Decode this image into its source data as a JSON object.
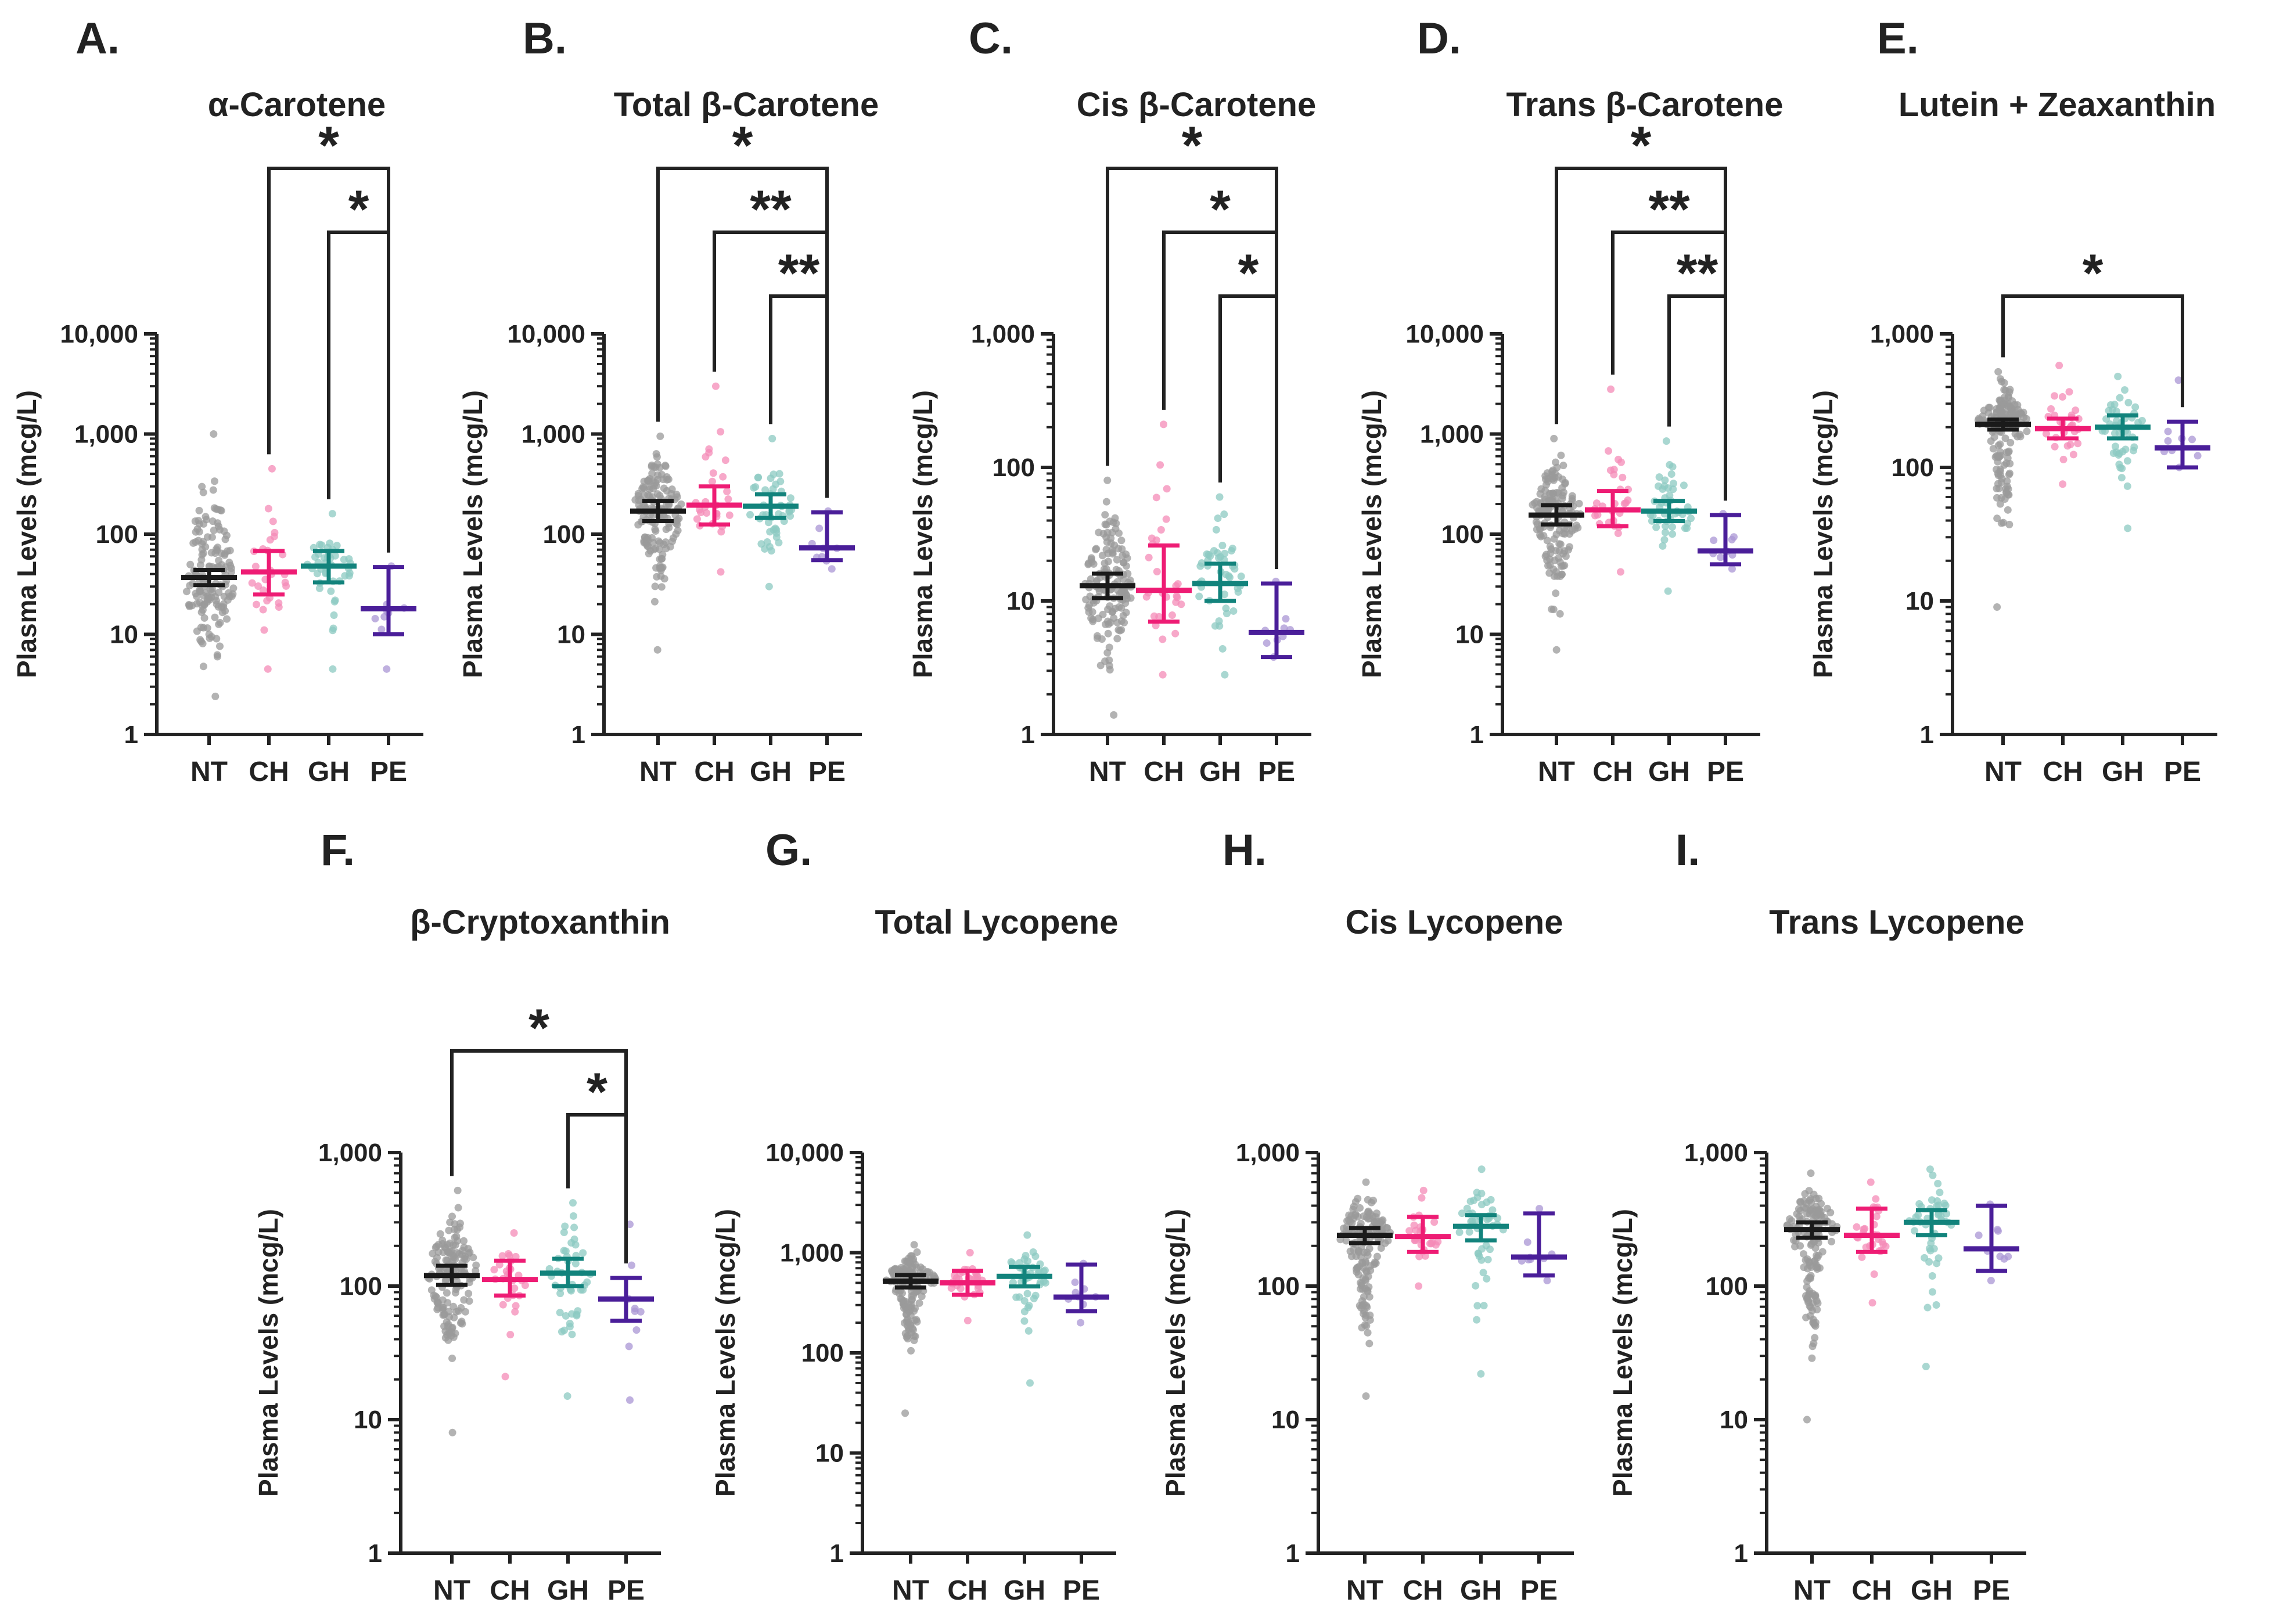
{
  "figure": {
    "ylabel": "Plasma Levels (mcg/L)",
    "categories": [
      "NT",
      "CH",
      "GH",
      "PE"
    ],
    "colors": {
      "NT": "#1a1a1a",
      "CH": "#ee1c74",
      "GH": "#12837c",
      "PE": "#4a1e99"
    },
    "dot_colors": {
      "NT": "#9a9a9a",
      "CH": "#f48bb7",
      "GH": "#8cc9c2",
      "PE": "#a995d4"
    }
  },
  "chart_data": [
    {
      "letter": "A.",
      "title": "α-Carotene",
      "type": "scatter",
      "yscale": "log",
      "ylim": [
        1,
        10000
      ],
      "yticks": [
        {
          "v": 1,
          "label": "1"
        },
        {
          "v": 10,
          "label": "10"
        },
        {
          "v": 100,
          "label": "100"
        },
        {
          "v": 1000,
          "label": "1,000"
        },
        {
          "v": 10000,
          "label": "10,000"
        }
      ],
      "groups": [
        {
          "cat": "NT",
          "center": 37,
          "low": 31,
          "high": 44,
          "min": 2.4,
          "max": 1000,
          "n": 150,
          "seed": 11
        },
        {
          "cat": "CH",
          "center": 42,
          "low": 25,
          "high": 68,
          "min": 4.5,
          "max": 450,
          "n": 28,
          "seed": 12
        },
        {
          "cat": "GH",
          "center": 48,
          "low": 33,
          "high": 68,
          "min": 4.5,
          "max": 160,
          "n": 45,
          "seed": 13
        },
        {
          "cat": "PE",
          "center": 18,
          "low": 10,
          "high": 47,
          "min": 4.5,
          "max": 48,
          "n": 9,
          "seed": 14
        }
      ],
      "brackets": [
        {
          "from": "CH",
          "to": "PE",
          "label": "*",
          "level": 0
        },
        {
          "from": "GH",
          "to": "PE",
          "label": "*",
          "level": 1
        }
      ]
    },
    {
      "letter": "B.",
      "title": "Total β-Carotene",
      "type": "scatter",
      "yscale": "log",
      "ylim": [
        1,
        10000
      ],
      "yticks": [
        {
          "v": 1,
          "label": "1"
        },
        {
          "v": 10,
          "label": "10"
        },
        {
          "v": 100,
          "label": "100"
        },
        {
          "v": 1000,
          "label": "1,000"
        },
        {
          "v": 10000,
          "label": "10,000"
        }
      ],
      "groups": [
        {
          "cat": "NT",
          "center": 170,
          "low": 135,
          "high": 215,
          "min": 7,
          "max": 950,
          "n": 150,
          "seed": 21
        },
        {
          "cat": "CH",
          "center": 195,
          "low": 125,
          "high": 300,
          "min": 42,
          "max": 3000,
          "n": 28,
          "seed": 22
        },
        {
          "cat": "GH",
          "center": 190,
          "low": 145,
          "high": 250,
          "min": 30,
          "max": 900,
          "n": 45,
          "seed": 23
        },
        {
          "cat": "PE",
          "center": 73,
          "low": 55,
          "high": 165,
          "min": 45,
          "max": 170,
          "n": 9,
          "seed": 24
        }
      ],
      "brackets": [
        {
          "from": "NT",
          "to": "PE",
          "label": "*",
          "level": 0
        },
        {
          "from": "CH",
          "to": "PE",
          "label": "**",
          "level": 1
        },
        {
          "from": "GH",
          "to": "PE",
          "label": "**",
          "level": 2
        }
      ]
    },
    {
      "letter": "C.",
      "title": "Cis β-Carotene",
      "type": "scatter",
      "yscale": "log",
      "ylim": [
        1,
        1000
      ],
      "yticks": [
        {
          "v": 1,
          "label": "1"
        },
        {
          "v": 10,
          "label": "10"
        },
        {
          "v": 100,
          "label": "100"
        },
        {
          "v": 1000,
          "label": "1,000"
        }
      ],
      "groups": [
        {
          "cat": "NT",
          "center": 13,
          "low": 10.5,
          "high": 16,
          "min": 1.4,
          "max": 80,
          "n": 150,
          "seed": 31
        },
        {
          "cat": "CH",
          "center": 12,
          "low": 7,
          "high": 26,
          "min": 2.8,
          "max": 210,
          "n": 28,
          "seed": 32
        },
        {
          "cat": "GH",
          "center": 13.5,
          "low": 10,
          "high": 19,
          "min": 2.8,
          "max": 60,
          "n": 45,
          "seed": 33
        },
        {
          "cat": "PE",
          "center": 5.8,
          "low": 3.8,
          "high": 13.5,
          "min": 3.8,
          "max": 14,
          "n": 9,
          "seed": 34
        }
      ],
      "brackets": [
        {
          "from": "NT",
          "to": "PE",
          "label": "*",
          "level": 0
        },
        {
          "from": "CH",
          "to": "PE",
          "label": "*",
          "level": 1
        },
        {
          "from": "GH",
          "to": "PE",
          "label": "*",
          "level": 2
        }
      ]
    },
    {
      "letter": "D.",
      "title": "Trans β-Carotene",
      "type": "scatter",
      "yscale": "log",
      "ylim": [
        1,
        10000
      ],
      "yticks": [
        {
          "v": 1,
          "label": "1"
        },
        {
          "v": 10,
          "label": "10"
        },
        {
          "v": 100,
          "label": "100"
        },
        {
          "v": 1000,
          "label": "1,000"
        },
        {
          "v": 10000,
          "label": "10,000"
        }
      ],
      "groups": [
        {
          "cat": "NT",
          "center": 155,
          "low": 125,
          "high": 195,
          "min": 7,
          "max": 900,
          "n": 150,
          "seed": 41
        },
        {
          "cat": "CH",
          "center": 175,
          "low": 120,
          "high": 270,
          "min": 42,
          "max": 2800,
          "n": 28,
          "seed": 42
        },
        {
          "cat": "GH",
          "center": 170,
          "low": 135,
          "high": 215,
          "min": 27,
          "max": 850,
          "n": 45,
          "seed": 43
        },
        {
          "cat": "PE",
          "center": 68,
          "low": 50,
          "high": 155,
          "min": 45,
          "max": 160,
          "n": 9,
          "seed": 44
        }
      ],
      "brackets": [
        {
          "from": "NT",
          "to": "PE",
          "label": "*",
          "level": 0
        },
        {
          "from": "CH",
          "to": "PE",
          "label": "**",
          "level": 1
        },
        {
          "from": "GH",
          "to": "PE",
          "label": "**",
          "level": 2
        }
      ]
    },
    {
      "letter": "E.",
      "title": "Lutein + Zeaxanthin",
      "type": "scatter",
      "yscale": "log",
      "ylim": [
        1,
        1000
      ],
      "yticks": [
        {
          "v": 1,
          "label": "1"
        },
        {
          "v": 10,
          "label": "10"
        },
        {
          "v": 100,
          "label": "100"
        },
        {
          "v": 1000,
          "label": "1,000"
        }
      ],
      "groups": [
        {
          "cat": "NT",
          "center": 210,
          "low": 192,
          "high": 228,
          "min": 9,
          "max": 520,
          "n": 150,
          "seed": 51
        },
        {
          "cat": "CH",
          "center": 195,
          "low": 165,
          "high": 232,
          "min": 75,
          "max": 580,
          "n": 28,
          "seed": 52
        },
        {
          "cat": "GH",
          "center": 200,
          "low": 165,
          "high": 245,
          "min": 35,
          "max": 480,
          "n": 45,
          "seed": 53
        },
        {
          "cat": "PE",
          "center": 140,
          "low": 100,
          "high": 220,
          "min": 100,
          "max": 450,
          "n": 9,
          "seed": 54
        }
      ],
      "brackets": [
        {
          "from": "NT",
          "to": "PE",
          "label": "*",
          "level": 2
        }
      ]
    },
    {
      "letter": "F.",
      "title": "β-Cryptoxanthin",
      "type": "scatter",
      "yscale": "log",
      "ylim": [
        1,
        1000
      ],
      "yticks": [
        {
          "v": 1,
          "label": "1"
        },
        {
          "v": 10,
          "label": "10"
        },
        {
          "v": 100,
          "label": "100"
        },
        {
          "v": 1000,
          "label": "1,000"
        }
      ],
      "groups": [
        {
          "cat": "NT",
          "center": 120,
          "low": 102,
          "high": 142,
          "min": 8,
          "max": 520,
          "n": 150,
          "seed": 61
        },
        {
          "cat": "CH",
          "center": 112,
          "low": 85,
          "high": 155,
          "min": 21,
          "max": 250,
          "n": 28,
          "seed": 62
        },
        {
          "cat": "GH",
          "center": 125,
          "low": 100,
          "high": 160,
          "min": 15,
          "max": 420,
          "n": 45,
          "seed": 63
        },
        {
          "cat": "PE",
          "center": 80,
          "low": 55,
          "high": 115,
          "min": 14,
          "max": 290,
          "n": 9,
          "seed": 64
        }
      ],
      "brackets": [
        {
          "from": "NT",
          "to": "PE",
          "label": "*",
          "level": 1
        },
        {
          "from": "GH",
          "to": "PE",
          "label": "*",
          "level": 2
        }
      ]
    },
    {
      "letter": "G.",
      "title": "Total Lycopene",
      "type": "scatter",
      "yscale": "log",
      "ylim": [
        1,
        10000
      ],
      "yticks": [
        {
          "v": 1,
          "label": "1"
        },
        {
          "v": 10,
          "label": "10"
        },
        {
          "v": 100,
          "label": "100"
        },
        {
          "v": 1000,
          "label": "1,000"
        },
        {
          "v": 10000,
          "label": "10,000"
        }
      ],
      "groups": [
        {
          "cat": "NT",
          "center": 520,
          "low": 450,
          "high": 600,
          "min": 25,
          "max": 1200,
          "n": 150,
          "seed": 71
        },
        {
          "cat": "CH",
          "center": 500,
          "low": 380,
          "high": 660,
          "min": 210,
          "max": 1000,
          "n": 28,
          "seed": 72
        },
        {
          "cat": "GH",
          "center": 580,
          "low": 460,
          "high": 720,
          "min": 50,
          "max": 1500,
          "n": 45,
          "seed": 73
        },
        {
          "cat": "PE",
          "center": 360,
          "low": 260,
          "high": 760,
          "min": 200,
          "max": 780,
          "n": 9,
          "seed": 74
        }
      ],
      "brackets": []
    },
    {
      "letter": "H.",
      "title": "Cis Lycopene",
      "type": "scatter",
      "yscale": "log",
      "ylim": [
        1,
        1000
      ],
      "yticks": [
        {
          "v": 1,
          "label": "1"
        },
        {
          "v": 10,
          "label": "10"
        },
        {
          "v": 100,
          "label": "100"
        },
        {
          "v": 1000,
          "label": "1,000"
        }
      ],
      "groups": [
        {
          "cat": "NT",
          "center": 240,
          "low": 210,
          "high": 272,
          "min": 15,
          "max": 600,
          "n": 150,
          "seed": 81
        },
        {
          "cat": "CH",
          "center": 235,
          "low": 180,
          "high": 330,
          "min": 100,
          "max": 520,
          "n": 28,
          "seed": 82
        },
        {
          "cat": "GH",
          "center": 280,
          "low": 220,
          "high": 340,
          "min": 22,
          "max": 750,
          "n": 45,
          "seed": 83
        },
        {
          "cat": "PE",
          "center": 165,
          "low": 120,
          "high": 350,
          "min": 110,
          "max": 380,
          "n": 9,
          "seed": 84
        }
      ],
      "brackets": []
    },
    {
      "letter": "I.",
      "title": "Trans Lycopene",
      "type": "scatter",
      "yscale": "log",
      "ylim": [
        1,
        1000
      ],
      "yticks": [
        {
          "v": 1,
          "label": "1"
        },
        {
          "v": 10,
          "label": "10"
        },
        {
          "v": 100,
          "label": "100"
        },
        {
          "v": 1000,
          "label": "1,000"
        }
      ],
      "groups": [
        {
          "cat": "NT",
          "center": 265,
          "low": 230,
          "high": 300,
          "min": 10,
          "max": 700,
          "n": 150,
          "seed": 91
        },
        {
          "cat": "CH",
          "center": 240,
          "low": 180,
          "high": 380,
          "min": 75,
          "max": 600,
          "n": 28,
          "seed": 92
        },
        {
          "cat": "GH",
          "center": 300,
          "low": 240,
          "high": 370,
          "min": 25,
          "max": 750,
          "n": 45,
          "seed": 93
        },
        {
          "cat": "PE",
          "center": 190,
          "low": 130,
          "high": 400,
          "min": 110,
          "max": 410,
          "n": 9,
          "seed": 94
        }
      ],
      "brackets": []
    }
  ]
}
